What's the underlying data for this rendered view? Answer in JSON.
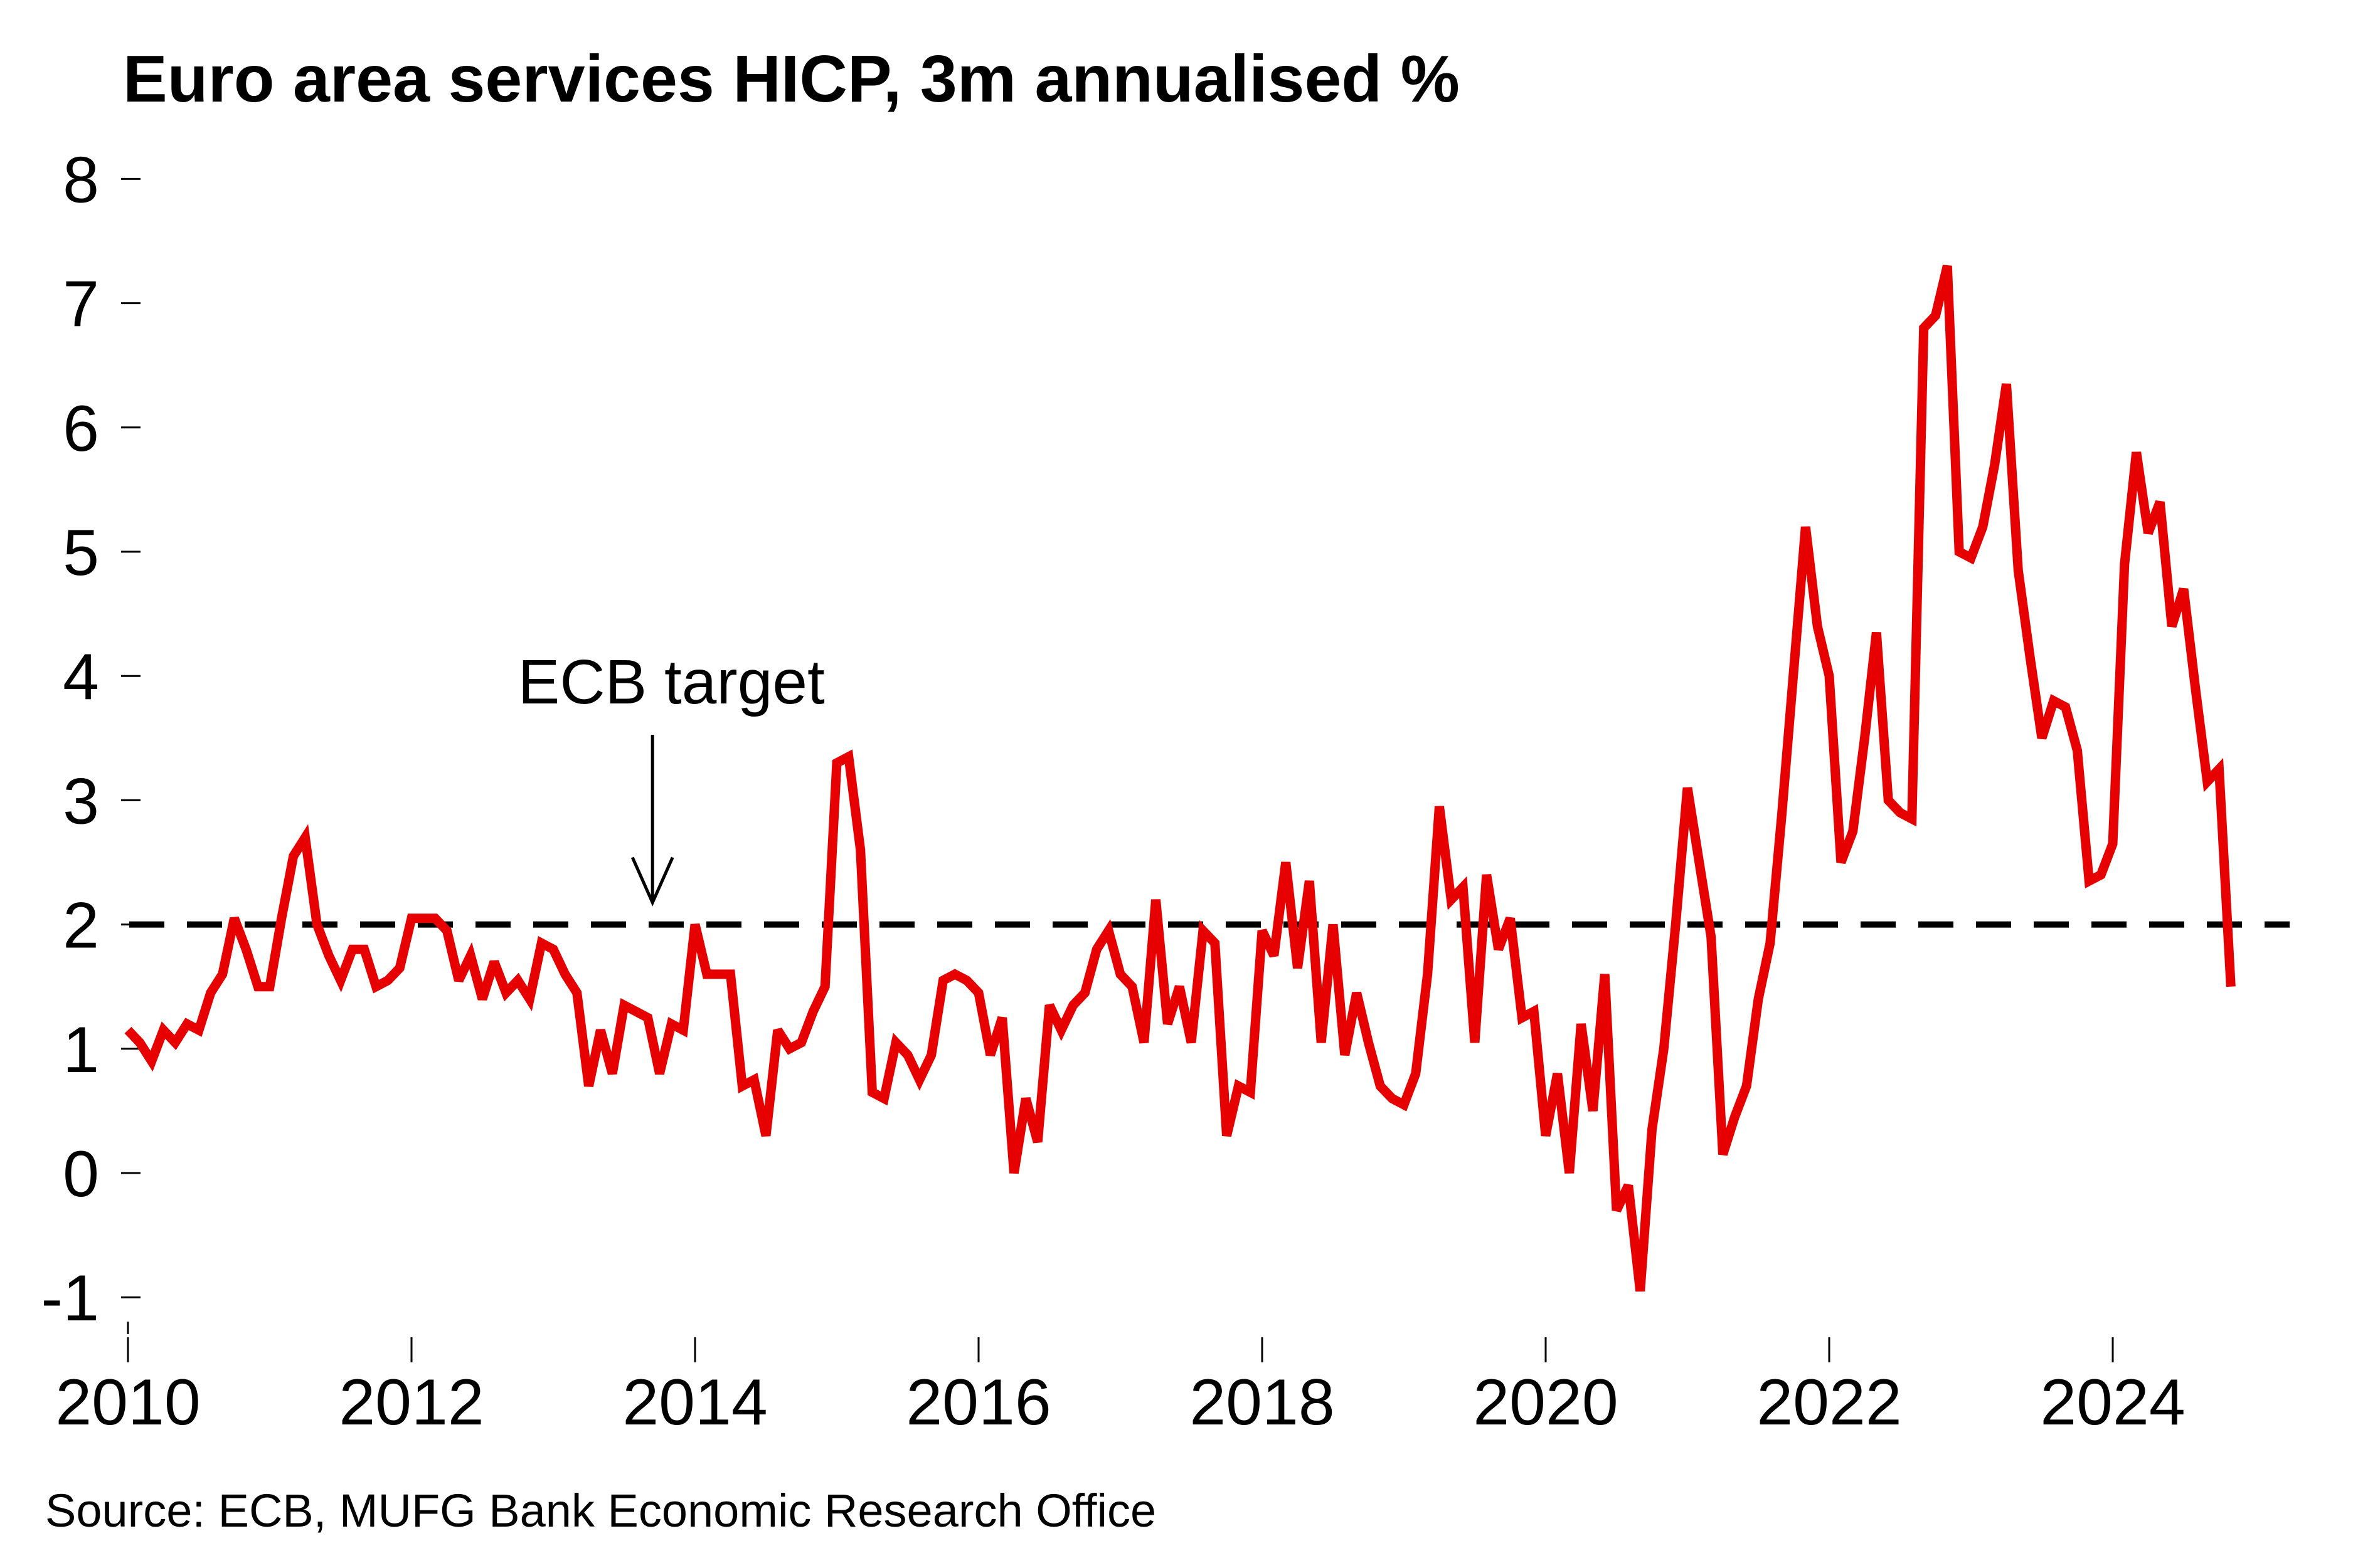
{
  "chart_data": {
    "type": "line",
    "title": "Euro area services HICP, 3m annualised %",
    "xlabel": "",
    "ylabel": "",
    "source": "Source: ECB, MUFG Bank Economic Research Office",
    "ylim": [
      -1,
      8
    ],
    "xlim": [
      2010,
      2025.5
    ],
    "y_ticks": [
      "8",
      "7",
      "6",
      "5",
      "4",
      "3",
      "2",
      "1",
      "0",
      "-1"
    ],
    "y_tick_values": [
      8,
      7,
      6,
      5,
      4,
      3,
      2,
      1,
      0,
      -1
    ],
    "x_ticks": [
      "2010",
      "2012",
      "2014",
      "2016",
      "2018",
      "2020",
      "2022",
      "2024"
    ],
    "x_tick_values": [
      2010,
      2012,
      2014,
      2016,
      2018,
      2020,
      2022,
      2024
    ],
    "grid": false,
    "legend": "none",
    "reference_line": {
      "label": "ECB target",
      "value": 2,
      "style": "dashed",
      "color": "#000000"
    },
    "annotations": [
      {
        "text": "ECB target",
        "points_to": {
          "x": 2013.7,
          "y": 2
        }
      }
    ],
    "series": [
      {
        "name": "Euro area services HICP, 3m annualised %",
        "color": "#E60000",
        "start": "2010-01",
        "frequency": "monthly",
        "values": [
          1.15,
          1.05,
          0.9,
          1.15,
          1.05,
          1.2,
          1.15,
          1.45,
          1.6,
          2.05,
          1.8,
          1.5,
          1.5,
          2.05,
          2.55,
          2.7,
          2.0,
          1.75,
          1.55,
          1.8,
          1.8,
          1.5,
          1.55,
          1.65,
          2.05,
          2.05,
          2.05,
          1.95,
          1.55,
          1.75,
          1.4,
          1.7,
          1.45,
          1.55,
          1.4,
          1.85,
          1.8,
          1.6,
          1.45,
          0.7,
          1.15,
          0.8,
          1.35,
          1.3,
          1.25,
          0.8,
          1.2,
          1.15,
          2.0,
          1.6,
          1.6,
          1.6,
          0.7,
          0.75,
          0.3,
          1.15,
          1.0,
          1.05,
          1.3,
          1.5,
          3.3,
          3.35,
          2.6,
          0.65,
          0.6,
          1.05,
          0.95,
          0.75,
          0.95,
          1.55,
          1.6,
          1.55,
          1.45,
          0.95,
          1.25,
          0.0,
          0.6,
          0.25,
          1.35,
          1.15,
          1.35,
          1.45,
          1.8,
          1.95,
          1.6,
          1.5,
          1.05,
          2.2,
          1.2,
          1.5,
          1.05,
          1.95,
          1.85,
          0.3,
          0.7,
          0.65,
          1.95,
          1.75,
          2.5,
          1.65,
          2.35,
          1.05,
          2.0,
          0.95,
          1.45,
          1.05,
          0.7,
          0.6,
          0.55,
          0.8,
          1.6,
          2.95,
          2.2,
          2.3,
          1.05,
          2.4,
          1.8,
          2.05,
          1.25,
          1.3,
          0.3,
          0.8,
          0.0,
          1.2,
          0.5,
          1.6,
          -0.3,
          -0.1,
          -0.95,
          0.35,
          1.0,
          2.0,
          3.1,
          2.5,
          1.9,
          0.15,
          0.45,
          0.7,
          1.4,
          1.85,
          2.9,
          4.05,
          5.2,
          4.4,
          4.0,
          2.5,
          2.75,
          3.5,
          4.35,
          3.0,
          2.9,
          2.85,
          6.8,
          6.9,
          7.3,
          5.0,
          4.95,
          5.2,
          5.7,
          6.35,
          4.85,
          4.15,
          3.5,
          3.8,
          3.75,
          3.4,
          2.35,
          2.4,
          2.65,
          4.9,
          5.8,
          5.15,
          5.4,
          4.4,
          4.7,
          3.9,
          3.15,
          3.25,
          1.5
        ]
      }
    ]
  }
}
